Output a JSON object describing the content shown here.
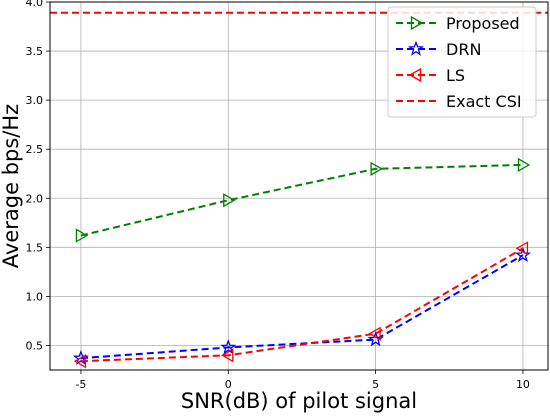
{
  "chart_data": {
    "type": "line",
    "xlabel": "SNR(dB) of pilot signal",
    "ylabel": "Average bps/Hz",
    "x": [
      -5,
      0,
      5,
      10
    ],
    "x_tick_labels": [
      "-5",
      "0",
      "5",
      "10"
    ],
    "xlim": [
      -6.05,
      10.85
    ],
    "ylim": [
      0.25,
      4.0
    ],
    "y_ticks": [
      0.5,
      1.0,
      1.5,
      2.0,
      2.5,
      3.0,
      3.5,
      4.0
    ],
    "y_tick_labels": [
      "0.5",
      "1.0",
      "1.5",
      "2.0",
      "2.5",
      "3.0",
      "3.5",
      "4.0"
    ],
    "grid": true,
    "legend_position": "top-right",
    "series": [
      {
        "name": "Proposed",
        "values": [
          1.62,
          1.98,
          2.3,
          2.34
        ],
        "color": "#008000",
        "marker": "triangle-right",
        "linestyle": "dashed"
      },
      {
        "name": "DRN",
        "values": [
          0.37,
          0.48,
          0.56,
          1.42
        ],
        "color": "#0000ff",
        "marker": "star",
        "linestyle": "dashed"
      },
      {
        "name": "LS",
        "values": [
          0.34,
          0.4,
          0.62,
          1.49
        ],
        "color": "#ff0000",
        "marker": "triangle-left",
        "linestyle": "dashed"
      }
    ],
    "reference_lines": [
      {
        "name": "Exact CSI",
        "y": 3.89,
        "color": "#ff0000",
        "linestyle": "dashed"
      }
    ]
  }
}
